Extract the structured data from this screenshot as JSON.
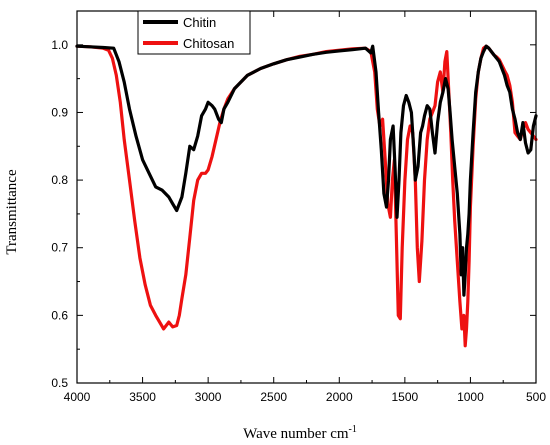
{
  "chart_data": {
    "type": "line",
    "xlabel": "Wave number cm",
    "xlabel_sup": "-1",
    "ylabel": "Transmittance",
    "xlim": [
      4000,
      500
    ],
    "ylim": [
      0.5,
      1.05
    ],
    "xticks": [
      4000,
      3500,
      3000,
      2500,
      2000,
      1500,
      1000,
      500
    ],
    "yticks": [
      0.5,
      0.6,
      0.7,
      0.8,
      0.9,
      1.0
    ],
    "ytick_labels": [
      "0.5",
      "0.6",
      "0.7",
      "0.8",
      "0.9",
      "1.0"
    ],
    "legend_position": "top-left",
    "grid": false,
    "series": [
      {
        "name": "Chitin",
        "color": "#000000",
        "x": [
          4000,
          3900,
          3800,
          3720,
          3680,
          3640,
          3600,
          3550,
          3500,
          3450,
          3400,
          3350,
          3300,
          3270,
          3240,
          3200,
          3170,
          3140,
          3110,
          3080,
          3050,
          3020,
          3000,
          2970,
          2950,
          2920,
          2900,
          2880,
          2850,
          2800,
          2700,
          2600,
          2500,
          2400,
          2300,
          2200,
          2100,
          2000,
          1900,
          1800,
          1760,
          1745,
          1720,
          1700,
          1680,
          1660,
          1640,
          1625,
          1610,
          1590,
          1575,
          1560,
          1545,
          1530,
          1510,
          1490,
          1470,
          1450,
          1430,
          1420,
          1400,
          1380,
          1365,
          1350,
          1330,
          1310,
          1290,
          1270,
          1250,
          1230,
          1210,
          1190,
          1170,
          1155,
          1140,
          1120,
          1100,
          1080,
          1070,
          1060,
          1050,
          1040,
          1030,
          1020,
          1010,
          1000,
          980,
          960,
          940,
          920,
          900,
          880,
          860,
          840,
          820,
          800,
          780,
          760,
          740,
          720,
          700,
          680,
          660,
          640,
          620,
          600,
          580,
          560,
          540,
          520,
          500
        ],
        "y": [
          0.998,
          0.997,
          0.996,
          0.995,
          0.975,
          0.945,
          0.905,
          0.865,
          0.83,
          0.81,
          0.79,
          0.785,
          0.775,
          0.765,
          0.755,
          0.775,
          0.81,
          0.85,
          0.845,
          0.865,
          0.895,
          0.905,
          0.915,
          0.91,
          0.905,
          0.89,
          0.885,
          0.905,
          0.915,
          0.935,
          0.955,
          0.965,
          0.972,
          0.978,
          0.982,
          0.986,
          0.989,
          0.991,
          0.993,
          0.995,
          0.988,
          0.998,
          0.96,
          0.9,
          0.845,
          0.78,
          0.76,
          0.8,
          0.86,
          0.88,
          0.82,
          0.745,
          0.8,
          0.87,
          0.91,
          0.925,
          0.915,
          0.9,
          0.84,
          0.8,
          0.82,
          0.87,
          0.88,
          0.895,
          0.91,
          0.905,
          0.87,
          0.84,
          0.885,
          0.915,
          0.93,
          0.95,
          0.935,
          0.9,
          0.86,
          0.82,
          0.78,
          0.72,
          0.66,
          0.7,
          0.63,
          0.66,
          0.7,
          0.72,
          0.75,
          0.8,
          0.87,
          0.93,
          0.96,
          0.98,
          0.99,
          0.998,
          0.995,
          0.99,
          0.985,
          0.98,
          0.975,
          0.965,
          0.955,
          0.94,
          0.93,
          0.905,
          0.89,
          0.87,
          0.86,
          0.885,
          0.855,
          0.84,
          0.845,
          0.88,
          0.895
        ]
      },
      {
        "name": "Chitosan",
        "color": "#ee1111",
        "x": [
          4000,
          3900,
          3800,
          3760,
          3730,
          3700,
          3670,
          3640,
          3600,
          3560,
          3520,
          3480,
          3440,
          3400,
          3370,
          3340,
          3320,
          3300,
          3270,
          3240,
          3220,
          3200,
          3170,
          3140,
          3110,
          3080,
          3050,
          3020,
          3000,
          2970,
          2940,
          2910,
          2880,
          2850,
          2800,
          2700,
          2600,
          2500,
          2400,
          2300,
          2200,
          2100,
          2000,
          1900,
          1800,
          1760,
          1730,
          1710,
          1690,
          1670,
          1650,
          1630,
          1610,
          1595,
          1580,
          1565,
          1550,
          1535,
          1520,
          1500,
          1480,
          1460,
          1440,
          1420,
          1405,
          1390,
          1370,
          1350,
          1330,
          1310,
          1290,
          1270,
          1250,
          1230,
          1210,
          1195,
          1180,
          1165,
          1150,
          1135,
          1120,
          1100,
          1080,
          1065,
          1050,
          1040,
          1030,
          1020,
          1010,
          1000,
          980,
          960,
          940,
          920,
          900,
          880,
          860,
          840,
          820,
          800,
          780,
          760,
          740,
          720,
          700,
          680,
          660,
          640,
          620,
          600,
          580,
          560,
          540,
          520,
          500
        ],
        "y": [
          0.998,
          0.997,
          0.995,
          0.992,
          0.98,
          0.955,
          0.915,
          0.86,
          0.8,
          0.74,
          0.685,
          0.645,
          0.615,
          0.6,
          0.59,
          0.58,
          0.585,
          0.59,
          0.583,
          0.585,
          0.6,
          0.625,
          0.66,
          0.715,
          0.77,
          0.8,
          0.81,
          0.81,
          0.815,
          0.835,
          0.86,
          0.885,
          0.905,
          0.92,
          0.935,
          0.955,
          0.965,
          0.972,
          0.978,
          0.983,
          0.986,
          0.99,
          0.992,
          0.994,
          0.995,
          0.99,
          0.96,
          0.905,
          0.88,
          0.89,
          0.83,
          0.765,
          0.745,
          0.8,
          0.83,
          0.72,
          0.6,
          0.595,
          0.7,
          0.8,
          0.86,
          0.88,
          0.87,
          0.8,
          0.7,
          0.65,
          0.71,
          0.8,
          0.86,
          0.89,
          0.9,
          0.91,
          0.945,
          0.96,
          0.93,
          0.975,
          0.99,
          0.93,
          0.87,
          0.8,
          0.74,
          0.68,
          0.62,
          0.58,
          0.6,
          0.555,
          0.58,
          0.62,
          0.68,
          0.76,
          0.85,
          0.92,
          0.96,
          0.98,
          0.995,
          0.998,
          0.995,
          0.99,
          0.985,
          0.982,
          0.978,
          0.97,
          0.962,
          0.955,
          0.94,
          0.915,
          0.87,
          0.865,
          0.86,
          0.875,
          0.885,
          0.875,
          0.87,
          0.865,
          0.86
        ]
      }
    ]
  }
}
